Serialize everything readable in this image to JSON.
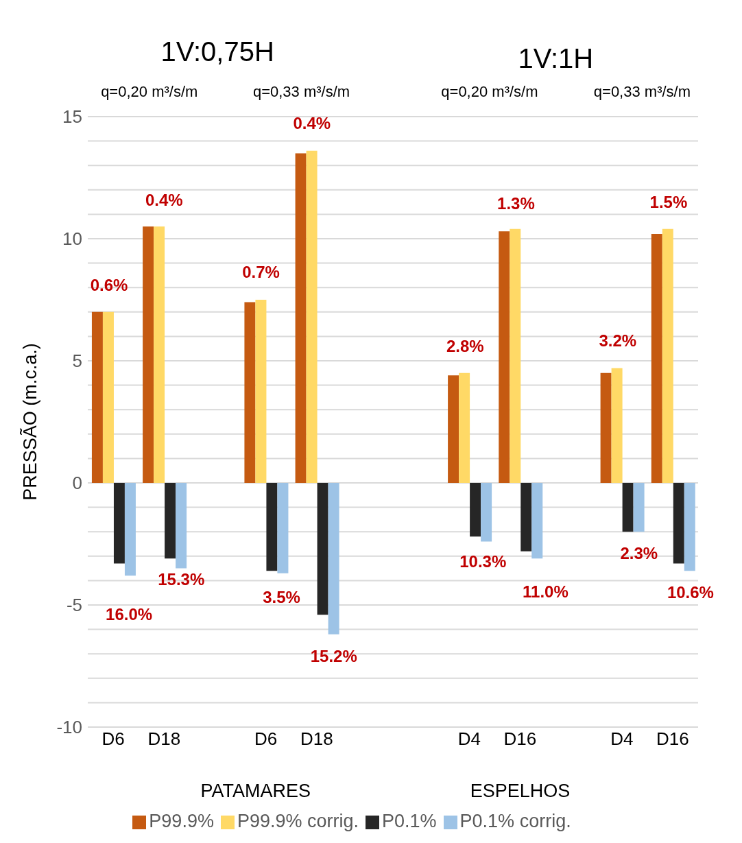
{
  "chart_data": {
    "type": "bar",
    "ylabel": "PRESSÃO (m.c.a.)",
    "categories": [
      "D6",
      "D18",
      null,
      "D6",
      "D18",
      null,
      null,
      "D4",
      "D16",
      null,
      "D4",
      "D16"
    ],
    "series": [
      {
        "name": "P99.9%",
        "color": "#c55a11",
        "values": [
          7.0,
          10.5,
          null,
          7.4,
          13.5,
          null,
          null,
          4.4,
          10.3,
          null,
          4.5,
          10.2
        ]
      },
      {
        "name": "P99.9% corrig.",
        "color": "#ffd966",
        "values": [
          7.0,
          10.5,
          null,
          7.5,
          13.6,
          null,
          null,
          4.5,
          10.4,
          null,
          4.7,
          10.4
        ]
      },
      {
        "name": "P0.1%",
        "color": "#262626",
        "values": [
          -3.3,
          -3.1,
          null,
          -3.6,
          -5.4,
          null,
          null,
          -2.2,
          -2.8,
          null,
          -2.0,
          -3.3
        ]
      },
      {
        "name": "P0.1% corrig.",
        "color": "#9dc3e6",
        "values": [
          -3.8,
          -3.5,
          null,
          -3.7,
          -6.2,
          null,
          null,
          -2.4,
          -3.1,
          null,
          -2.0,
          -3.6
        ]
      }
    ],
    "ylim": [
      -10,
      15
    ],
    "yticks": [
      -10,
      {
        "value": -9,
        "label": null
      },
      {
        "value": -8,
        "label": null
      },
      {
        "value": -7,
        "label": null
      },
      {
        "value": -6,
        "label": null
      },
      -5,
      {
        "value": -4,
        "label": null
      },
      {
        "value": -3,
        "label": null
      },
      {
        "value": -2,
        "label": null
      },
      {
        "value": -1,
        "label": null
      },
      0,
      {
        "value": 1,
        "label": null
      },
      {
        "value": 2,
        "label": null
      },
      {
        "value": 3,
        "label": null
      },
      {
        "value": 4,
        "label": null
      },
      5,
      {
        "value": 6,
        "label": null
      },
      {
        "value": 7,
        "label": null
      },
      {
        "value": 8,
        "label": null
      },
      {
        "value": 9,
        "label": null
      },
      10,
      {
        "value": 11,
        "label": null
      },
      {
        "value": 12,
        "label": null
      },
      {
        "value": 13,
        "label": null
      },
      {
        "value": 14,
        "label": null
      },
      15
    ],
    "grid": "y",
    "legend": "bottom",
    "annotations": [
      "1V:0,75H",
      "1V:1H",
      "q=0,20 m³/s/m",
      "q=0,33 m³/s/m",
      "q=0,20 m³/s/m",
      "q=0,33 m³/s/m",
      "PATAMARES",
      "ESPELHOS",
      "0.6%",
      "16.0%",
      "0.4%",
      "15.3%",
      "0.7%",
      "3.5%",
      "0.4%",
      "15.2%",
      "2.8%",
      "10.3%",
      "1.3%",
      "11.0%",
      "3.2%",
      "2.3%",
      "1.5%",
      "10.6%"
    ]
  }
}
